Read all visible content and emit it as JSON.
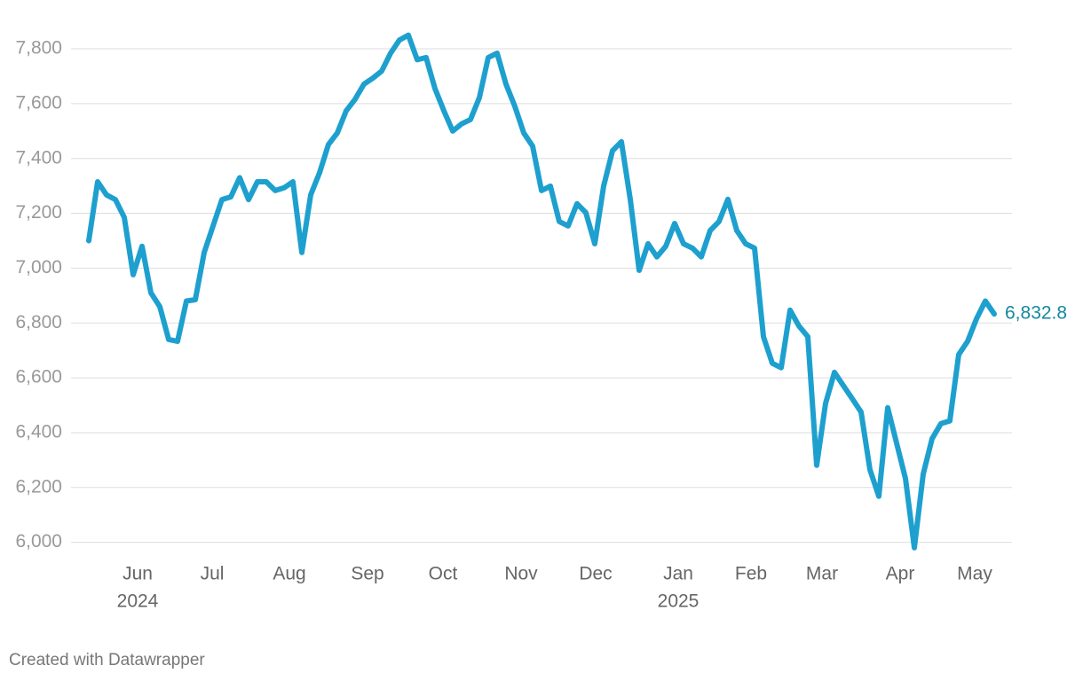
{
  "chart_data": {
    "type": "line",
    "values": [
      7100,
      7315,
      7267,
      7250,
      7185,
      6976,
      7080,
      6910,
      6860,
      6740,
      6733,
      6880,
      6885,
      7057,
      7154,
      7250,
      7260,
      7330,
      7250,
      7315,
      7315,
      7283,
      7293,
      7315,
      7057,
      7267,
      7348,
      7451,
      7493,
      7574,
      7616,
      7671,
      7693,
      7719,
      7784,
      7832,
      7850,
      7760,
      7768,
      7655,
      7574,
      7500,
      7526,
      7542,
      7622,
      7768,
      7784,
      7671,
      7590,
      7493,
      7445,
      7283,
      7299,
      7170,
      7154,
      7235,
      7202,
      7089,
      7299,
      7428,
      7461,
      7251,
      6992,
      7089,
      7041,
      7080,
      7163,
      7089,
      7073,
      7041,
      7137,
      7170,
      7251,
      7137,
      7089,
      7073,
      6750,
      6653,
      6637,
      6847,
      6789,
      6750,
      6281,
      6507,
      6620,
      6572,
      6524,
      6475,
      6265,
      6168,
      6491,
      6362,
      6233,
      5980,
      6249,
      6378,
      6433,
      6443,
      6685,
      6733,
      6815,
      6880,
      6832.8
    ],
    "color": "#1ea0cf",
    "last_value_label": "6,832.8",
    "ylim": [
      5960,
      7910
    ],
    "yticks": [
      {
        "value": 6000,
        "label": "6,000"
      },
      {
        "value": 6200,
        "label": "6,200"
      },
      {
        "value": 6400,
        "label": "6,400"
      },
      {
        "value": 6600,
        "label": "6,600"
      },
      {
        "value": 6800,
        "label": "6,800"
      },
      {
        "value": 7000,
        "label": "7,000"
      },
      {
        "value": 7200,
        "label": "7,200"
      },
      {
        "value": 7400,
        "label": "7,400"
      },
      {
        "value": 7600,
        "label": "7,600"
      },
      {
        "value": 7800,
        "label": "7,800"
      }
    ],
    "xticks": [
      {
        "value": 5.5,
        "label": "Jun"
      },
      {
        "value": 13.9,
        "label": "Jul"
      },
      {
        "value": 22.6,
        "label": "Aug"
      },
      {
        "value": 31.4,
        "label": "Sep"
      },
      {
        "value": 39.9,
        "label": "Oct"
      },
      {
        "value": 48.7,
        "label": "Nov"
      },
      {
        "value": 57.1,
        "label": "Dec"
      },
      {
        "value": 66.4,
        "label": "Jan"
      },
      {
        "value": 74.6,
        "label": "Feb"
      },
      {
        "value": 82.6,
        "label": "Mar"
      },
      {
        "value": 91.4,
        "label": "Apr"
      },
      {
        "value": 99.8,
        "label": "May"
      }
    ],
    "year_labels": [
      {
        "value": 5.5,
        "label": "2024"
      },
      {
        "value": 66.4,
        "label": "2025"
      }
    ],
    "grid": true,
    "credit": "Created with Datawrapper"
  }
}
